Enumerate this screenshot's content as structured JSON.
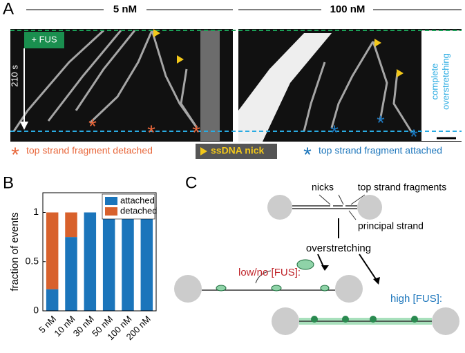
{
  "panel_a": {
    "label": "A",
    "conditions": [
      "5 nM",
      "100 nM"
    ],
    "fus_label": "+ FUS",
    "time_label": "210 s",
    "side_label": [
      "complete",
      "overstretching"
    ],
    "legend": [
      "top strand fragment detached",
      "ssDNA nick",
      "top strand fragment attached"
    ]
  },
  "panel_b": {
    "label": "B"
  },
  "chart_data": {
    "type": "bar",
    "stacked": true,
    "categories": [
      "5 nM",
      "10 nM",
      "30 nM",
      "50 nM",
      "100 nM",
      "200 nM"
    ],
    "series": [
      {
        "name": "attached",
        "color": "#1b75bb",
        "values": [
          0.22,
          0.75,
          1,
          1,
          1,
          1
        ]
      },
      {
        "name": "detached",
        "color": "#d8612c",
        "values": [
          0.78,
          0.25,
          0,
          0,
          0,
          0
        ]
      }
    ],
    "ylabel": "fraction of events",
    "ylim": [
      0,
      1.2
    ],
    "yticks": [
      0,
      0.5,
      1
    ],
    "legend": "upper right"
  },
  "panel_c": {
    "label": "C",
    "nicks": "nicks",
    "top_strand": "top strand fragments",
    "principal": "principal strand",
    "overstretching": "overstretching",
    "low": "low/no [FUS]:",
    "high": "high [FUS]:"
  }
}
